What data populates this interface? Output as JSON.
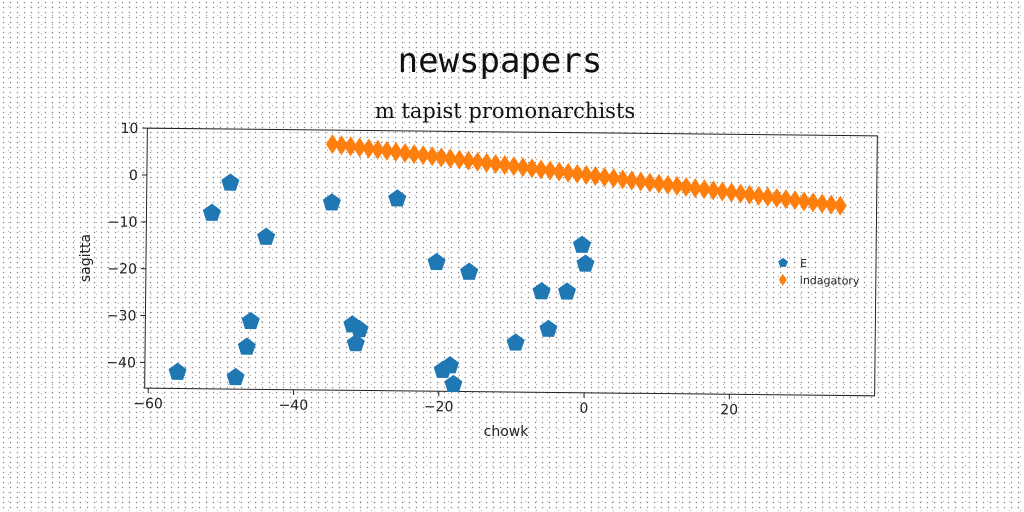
{
  "chart_data": {
    "type": "scatter",
    "title": "newspapers",
    "subtitle": "m tapist promonarchists",
    "xlabel": "chowk",
    "ylabel": "sagitta",
    "xlim": [
      -60.5,
      40
    ],
    "ylim": [
      -45.5,
      10
    ],
    "xticks": [
      -60,
      -40,
      -20,
      0,
      20
    ],
    "yticks": [
      10,
      0,
      -10,
      -20,
      -30,
      -40
    ],
    "grid": false,
    "legend_position": "center-right",
    "series": [
      {
        "name": "E",
        "color": "#1f77b4",
        "marker": "pentagon",
        "points": [
          {
            "x": -56,
            "y": -42
          },
          {
            "x": -51.5,
            "y": -8
          },
          {
            "x": -49,
            "y": -1.5
          },
          {
            "x": -48,
            "y": -43
          },
          {
            "x": -46.5,
            "y": -36.5
          },
          {
            "x": -46,
            "y": -31
          },
          {
            "x": -44,
            "y": -13
          },
          {
            "x": -35,
            "y": -5.5
          },
          {
            "x": -32,
            "y": -31.5
          },
          {
            "x": -31.5,
            "y": -35.5
          },
          {
            "x": -31,
            "y": -32.5
          },
          {
            "x": -26,
            "y": -4.5
          },
          {
            "x": -20.5,
            "y": -18
          },
          {
            "x": -19.5,
            "y": -41
          },
          {
            "x": -18.5,
            "y": -40
          },
          {
            "x": -18,
            "y": -44
          },
          {
            "x": -16,
            "y": -20
          },
          {
            "x": -9.5,
            "y": -35
          },
          {
            "x": -6,
            "y": -24
          },
          {
            "x": -5,
            "y": -32
          },
          {
            "x": -2.5,
            "y": -24
          },
          {
            "x": -0.5,
            "y": -14
          },
          {
            "x": 0,
            "y": -18
          }
        ]
      },
      {
        "name": "indagatory",
        "color": "#ff7f0e",
        "marker": "diamond",
        "line": {
          "x_start": -35,
          "x_end": 35,
          "count": 57,
          "y_start": 7,
          "y_end": -5
        }
      }
    ]
  }
}
